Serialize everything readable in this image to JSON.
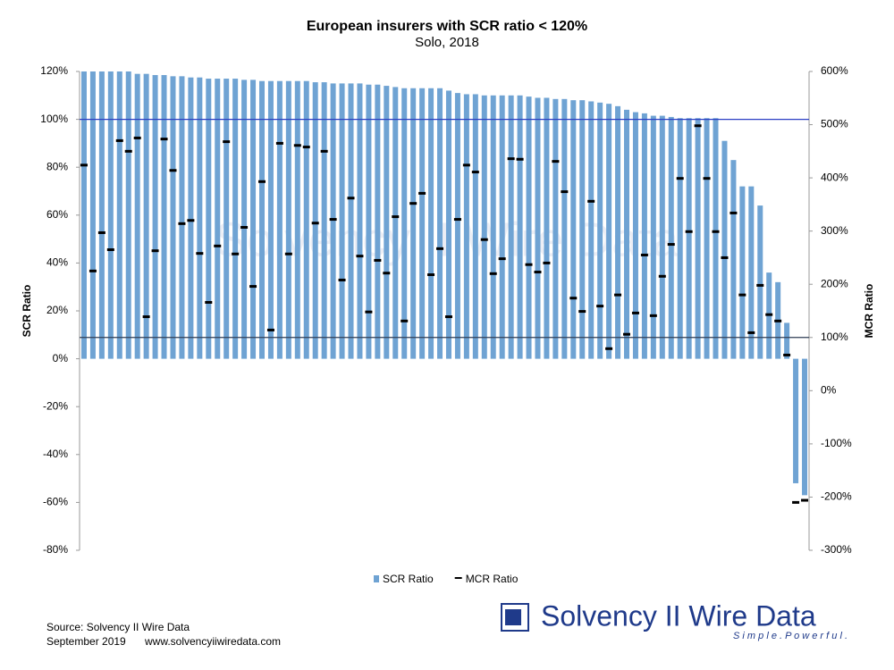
{
  "chart_data": {
    "type": "bar",
    "title": "European insurers with SCR ratio < 120%",
    "subtitle": "Solo, 2018",
    "y_label": "SCR Ratio",
    "y2_label": "MCR Ratio",
    "categories": [
      null,
      null,
      null,
      null,
      null,
      null,
      null,
      null,
      null,
      null,
      null,
      null,
      null,
      null,
      null,
      null,
      null,
      null,
      null,
      null,
      null,
      null,
      null,
      null,
      null,
      null,
      null,
      null,
      null,
      null,
      null,
      null,
      null,
      null,
      null,
      null,
      null,
      null,
      null,
      null,
      null,
      null,
      null,
      null,
      null,
      null,
      null,
      null,
      null,
      null,
      null,
      null,
      null,
      null,
      null,
      null,
      null,
      null,
      null,
      null,
      null,
      null,
      null,
      null,
      null,
      null,
      null,
      null,
      null,
      null,
      null,
      null,
      null,
      null,
      null,
      null,
      null,
      null,
      null,
      null,
      null,
      null
    ],
    "series": [
      {
        "name": "SCR Ratio",
        "type": "bar",
        "axis": "y",
        "color": "#6fa3d3",
        "values": [
          120,
          120,
          120,
          120,
          120,
          120,
          119,
          119,
          118.5,
          118.5,
          118,
          118,
          117.5,
          117.5,
          117,
          117,
          117,
          117,
          116.5,
          116.5,
          116,
          116,
          116,
          116,
          116,
          116,
          115.5,
          115.5,
          115,
          115,
          115,
          115,
          114.5,
          114.5,
          114,
          113.5,
          113,
          113,
          113,
          113,
          113,
          112,
          111,
          110.5,
          110.5,
          110,
          110,
          110,
          110,
          110,
          109.5,
          109,
          109,
          108.5,
          108.5,
          108,
          108,
          107.5,
          107,
          106.5,
          105.5,
          104,
          103,
          102.5,
          101.5,
          101.5,
          101,
          100.5,
          100.5,
          100.5,
          100.5,
          100.5,
          91,
          83,
          72,
          72,
          64,
          36,
          32,
          15,
          -52,
          -57
        ]
      },
      {
        "name": "MCR Ratio",
        "type": "marker",
        "axis": "y2",
        "color": "#000000",
        "values": [
          424,
          225,
          297,
          265,
          470,
          450,
          475,
          139,
          263,
          473,
          414,
          314,
          320,
          258,
          166,
          272,
          468,
          257,
          307,
          196,
          393,
          114,
          465,
          257,
          461,
          458,
          315,
          450,
          322,
          208,
          362,
          253,
          148,
          245,
          221,
          327,
          131,
          352,
          371,
          218,
          267,
          139,
          322,
          424,
          411,
          284,
          220,
          248,
          436,
          435,
          237,
          223,
          240,
          431,
          374,
          174,
          149,
          356,
          159,
          79,
          180,
          106,
          146,
          255,
          141,
          215,
          275,
          399,
          299,
          498,
          399,
          299,
          250,
          334,
          180,
          109,
          198,
          143,
          131,
          67,
          -210,
          -206
        ]
      }
    ],
    "ylim": [
      -80,
      120
    ],
    "yticks": [
      {
        "value": -80,
        "label": "-80%"
      },
      {
        "value": -60,
        "label": "-60%"
      },
      {
        "value": -40,
        "label": "-40%"
      },
      {
        "value": -20,
        "label": "-20%"
      },
      {
        "value": 0,
        "label": "0%"
      },
      {
        "value": 20,
        "label": "20%"
      },
      {
        "value": 40,
        "label": "40%"
      },
      {
        "value": 60,
        "label": "60%"
      },
      {
        "value": 80,
        "label": "80%"
      },
      {
        "value": 100,
        "label": "100%"
      },
      {
        "value": 120,
        "label": "120%"
      }
    ],
    "y2lim": [
      -300,
      600
    ],
    "y2ticks": [
      {
        "value": -300,
        "label": "-300%"
      },
      {
        "value": -200,
        "label": "-200%"
      },
      {
        "value": -100,
        "label": "-100%"
      },
      {
        "value": 0,
        "label": "0%"
      },
      {
        "value": 100,
        "label": "100%"
      },
      {
        "value": 200,
        "label": "200%"
      },
      {
        "value": 300,
        "label": "300%"
      },
      {
        "value": 400,
        "label": "400%"
      },
      {
        "value": 500,
        "label": "500%"
      },
      {
        "value": 600,
        "label": "600%"
      }
    ],
    "hlines": [
      {
        "axis": "y",
        "value": 100,
        "color": "#2b3fc4"
      },
      {
        "axis": "y2",
        "value": 100,
        "color": "#2f3e55"
      }
    ],
    "legend": "bottom",
    "grid": false
  },
  "footer": {
    "source": "Source: Solvency II Wire Data",
    "date": "September 2019",
    "url": "www.solvencyiiwiredata.com"
  },
  "logo": {
    "name": "Solvency II Wire Data",
    "tagline": "S i m p l e .   P o w e r f u l ."
  }
}
